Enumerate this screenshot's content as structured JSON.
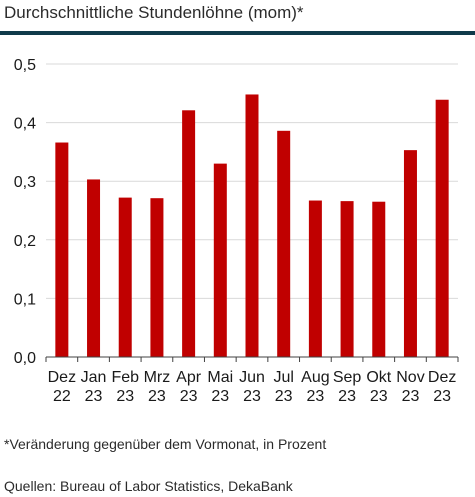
{
  "header": {
    "title": "Durchschnittliche Stundenlöhne (mom)*"
  },
  "footer": {
    "footnote": "*Veränderung gegenüber dem Vormonat, in Prozent",
    "sources": "Quellen: Bureau of Labor Statistics, DekaBank"
  },
  "colors": {
    "rule": "#0f3a4a",
    "bar": "#c00000",
    "grid": "#d9d9d9",
    "axis": "#404040",
    "text": "#1a1a1a"
  },
  "chart_data": {
    "type": "bar",
    "categories": [
      [
        "Dez",
        "22"
      ],
      [
        "Jan",
        "23"
      ],
      [
        "Feb",
        "23"
      ],
      [
        "Mrz",
        "23"
      ],
      [
        "Apr",
        "23"
      ],
      [
        "Mai",
        "23"
      ],
      [
        "Jun",
        "23"
      ],
      [
        "Jul",
        "23"
      ],
      [
        "Aug",
        "23"
      ],
      [
        "Sep",
        "23"
      ],
      [
        "Okt",
        "23"
      ],
      [
        "Nov",
        "23"
      ],
      [
        "Dez",
        "23"
      ]
    ],
    "values": [
      0.366,
      0.303,
      0.272,
      0.271,
      0.421,
      0.33,
      0.448,
      0.386,
      0.267,
      0.266,
      0.265,
      0.353,
      0.439
    ],
    "ylim": [
      0,
      0.5
    ],
    "yticks": [
      0,
      0.1,
      0.2,
      0.3,
      0.4,
      0.5
    ],
    "ytick_labels": [
      "0,0",
      "0,1",
      "0,2",
      "0,3",
      "0,4",
      "0,5"
    ],
    "grid": true,
    "title": "",
    "xlabel": "",
    "ylabel": ""
  }
}
